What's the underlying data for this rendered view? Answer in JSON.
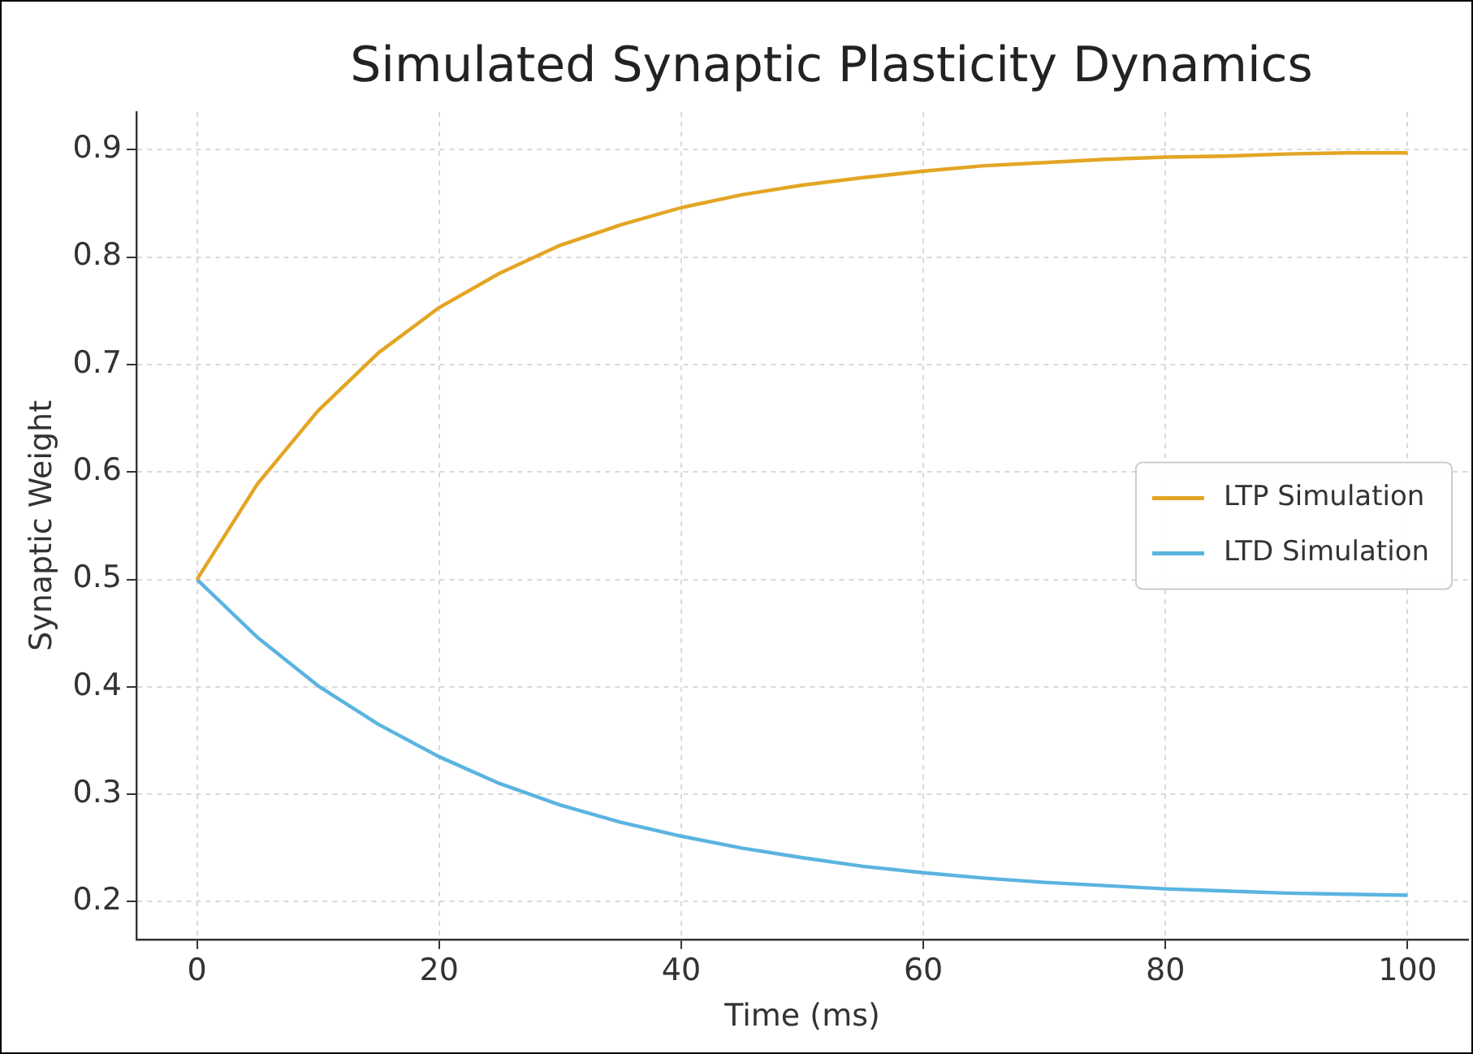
{
  "chart_data": {
    "type": "line",
    "title": "Simulated Synaptic Plasticity Dynamics",
    "xlabel": "Time (ms)",
    "ylabel": "Synaptic Weight",
    "x": [
      0,
      5,
      10,
      15,
      20,
      25,
      30,
      35,
      40,
      45,
      50,
      55,
      60,
      65,
      70,
      75,
      80,
      85,
      90,
      95,
      100
    ],
    "series": [
      {
        "name": "LTP Simulation",
        "color": "#e3a523",
        "values": [
          0.5,
          0.589,
          0.657,
          0.711,
          0.753,
          0.785,
          0.811,
          0.83,
          0.846,
          0.858,
          0.867,
          0.874,
          0.88,
          0.885,
          0.888,
          0.891,
          0.893,
          0.894,
          0.896,
          0.897,
          0.897
        ]
      },
      {
        "name": "LTD Simulation",
        "color": "#5ab4e0",
        "values": [
          0.5,
          0.446,
          0.401,
          0.365,
          0.335,
          0.31,
          0.29,
          0.274,
          0.261,
          0.25,
          0.241,
          0.233,
          0.227,
          0.222,
          0.218,
          0.215,
          0.212,
          0.21,
          0.208,
          0.207,
          0.206
        ]
      }
    ],
    "xlim": [
      -5,
      105
    ],
    "xticks": [
      0,
      20,
      40,
      60,
      80,
      100
    ],
    "ylim": [
      0.165,
      0.935
    ],
    "yticks": [
      0.2,
      0.3,
      0.4,
      0.5,
      0.6,
      0.7,
      0.8,
      0.9
    ],
    "grid": true,
    "legend": "right",
    "marker": "none",
    "line_style": "solid"
  }
}
